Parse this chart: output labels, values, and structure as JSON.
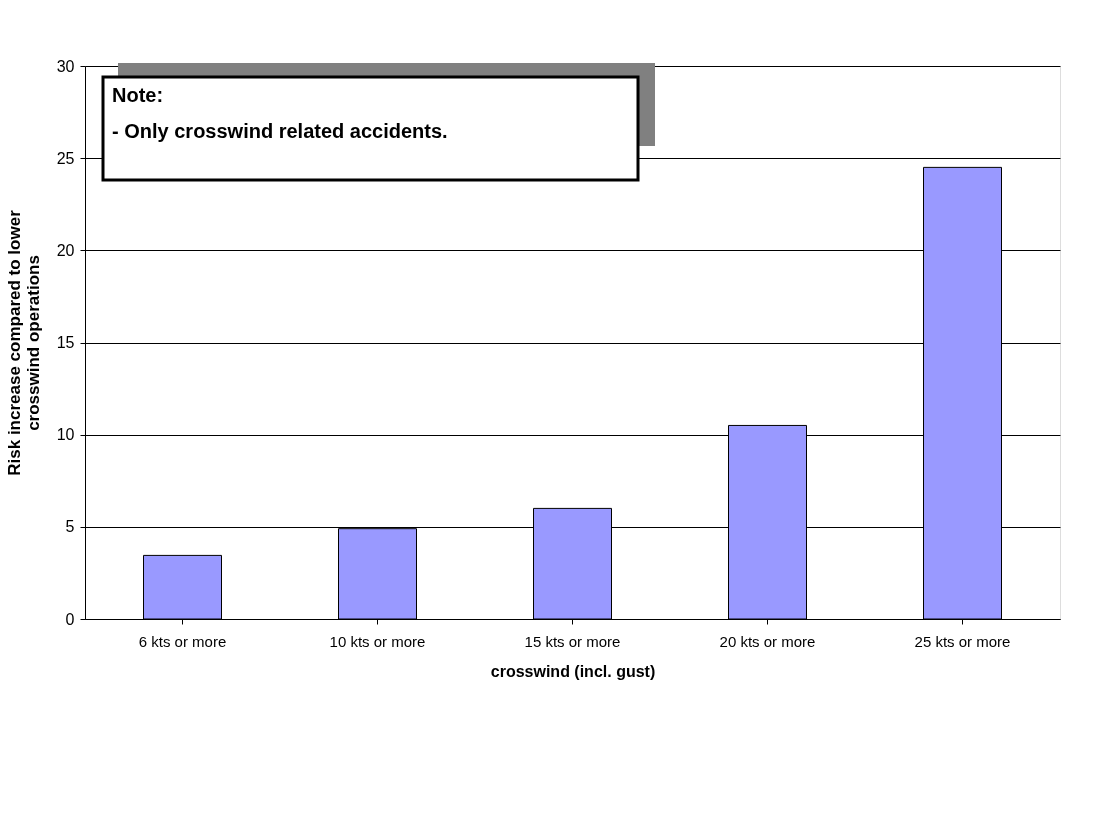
{
  "chart_data": {
    "type": "bar",
    "categories": [
      "6 kts or more",
      "10 kts or more",
      "15 kts or more",
      "20 kts or more",
      "25 kts or more"
    ],
    "values": [
      3.45,
      4.9,
      6.0,
      10.5,
      24.5
    ],
    "color": "#9999ff",
    "xlabel": "crosswind (incl. gust)",
    "ylabel": "Risk increase compared to lower crosswind operations",
    "ylim": [
      0,
      30
    ],
    "yticks": [
      0,
      5,
      10,
      15,
      20,
      25,
      30
    ],
    "grid": "y",
    "annotations": [
      "Note:\n- Only crosswind related accidents."
    ]
  }
}
